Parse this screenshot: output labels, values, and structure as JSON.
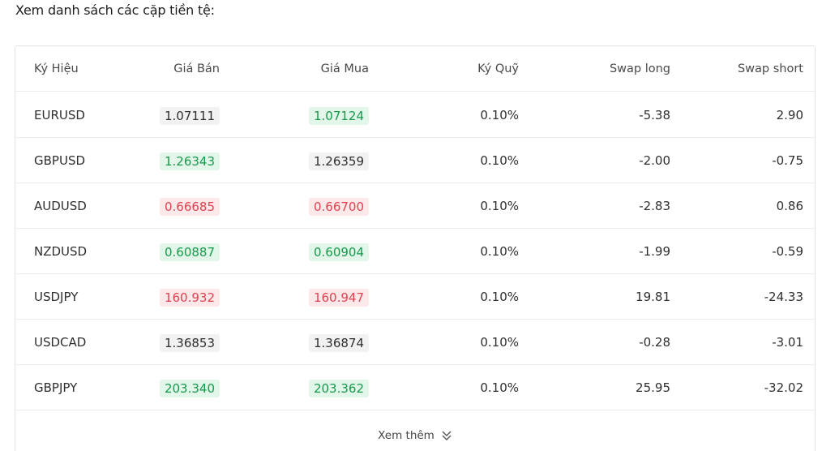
{
  "heading": "Xem danh sách các cặp tiền tệ:",
  "table": {
    "columns": {
      "symbol": "Ký Hiệu",
      "bid": "Giá Bán",
      "ask": "Giá Mua",
      "margin": "Ký Quỹ",
      "swap_long": "Swap long",
      "swap_short": "Swap short"
    },
    "rows": [
      {
        "symbol": "EURUSD",
        "bid": "1.07111",
        "bid_trend": "neutral",
        "ask": "1.07124",
        "ask_trend": "up",
        "margin": "0.10%",
        "swap_long": "-5.38",
        "swap_short": "2.90"
      },
      {
        "symbol": "GBPUSD",
        "bid": "1.26343",
        "bid_trend": "up",
        "ask": "1.26359",
        "ask_trend": "neutral",
        "margin": "0.10%",
        "swap_long": "-2.00",
        "swap_short": "-0.75"
      },
      {
        "symbol": "AUDUSD",
        "bid": "0.66685",
        "bid_trend": "down",
        "ask": "0.66700",
        "ask_trend": "down",
        "margin": "0.10%",
        "swap_long": "-2.83",
        "swap_short": "0.86"
      },
      {
        "symbol": "NZDUSD",
        "bid": "0.60887",
        "bid_trend": "up",
        "ask": "0.60904",
        "ask_trend": "up",
        "margin": "0.10%",
        "swap_long": "-1.99",
        "swap_short": "-0.59"
      },
      {
        "symbol": "USDJPY",
        "bid": "160.932",
        "bid_trend": "down",
        "ask": "160.947",
        "ask_trend": "down",
        "margin": "0.10%",
        "swap_long": "19.81",
        "swap_short": "-24.33"
      },
      {
        "symbol": "USDCAD",
        "bid": "1.36853",
        "bid_trend": "neutral",
        "ask": "1.36874",
        "ask_trend": "neutral",
        "margin": "0.10%",
        "swap_long": "-0.28",
        "swap_short": "-3.01"
      },
      {
        "symbol": "GBPJPY",
        "bid": "203.340",
        "bid_trend": "up",
        "ask": "203.362",
        "ask_trend": "up",
        "margin": "0.10%",
        "swap_long": "25.95",
        "swap_short": "-32.02"
      }
    ]
  },
  "more": {
    "label": "Xem thêm",
    "icon": "double-chevron-down-icon"
  },
  "colors": {
    "up_text": "#17994a",
    "up_bg": "#e3f6ea",
    "down_text": "#e0434f",
    "down_bg": "#fde8ea",
    "neutral_bg": "#f2f2f2"
  }
}
